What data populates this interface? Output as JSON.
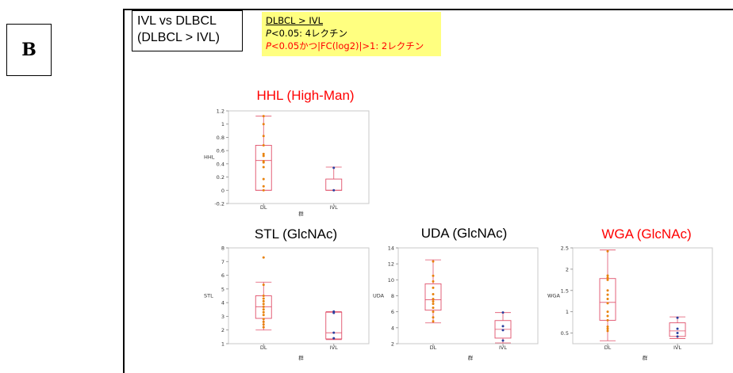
{
  "panel_label": "B",
  "comparison": {
    "line1": "IVL vs DLBCL",
    "line2": "(DLBCL > IVL)"
  },
  "note": {
    "heading": "DLBCL > IVL",
    "line1_p": "P",
    "line1_rest": "<0.05: 4レクチン",
    "line2_p": "P",
    "line2_rest": "<0.05かつ|FC(log2)|>1: 2レクチン"
  },
  "colors": {
    "significant": "#ff0000",
    "normal": "#000000",
    "dl_point": "#e8820c",
    "ivl_point": "#2a3f9e",
    "box": "#e0506a"
  },
  "chart_data": [
    {
      "type": "box",
      "title": "HHL (High-Man)",
      "title_color": "#ff0000",
      "ylabel": "HHL",
      "xlabel": "群",
      "categories": [
        "DL",
        "IVL"
      ],
      "ylim": [
        -0.2,
        1.2
      ],
      "yticks": [
        -0.2,
        0,
        0.2,
        0.4,
        0.6,
        0.8,
        1,
        1.2
      ],
      "ytick_labels": [
        "-0.2",
        "0",
        "0.2",
        "0.4",
        "0.6",
        "0.8",
        "1",
        "1.2"
      ],
      "groups": [
        {
          "name": "DL",
          "min": 0,
          "q1": 0,
          "median": 0.45,
          "q3": 0.68,
          "max": 1.12,
          "points": [
            1.12,
            1.0,
            0.82,
            0.68,
            0.55,
            0.52,
            0.44,
            0.42,
            0.35,
            0.17,
            0.06,
            0.0
          ]
        },
        {
          "name": "IVL",
          "min": 0,
          "q1": 0,
          "median": 0,
          "q3": 0.17,
          "max": 0.35,
          "points": [
            0.34,
            0.0
          ]
        }
      ]
    },
    {
      "type": "box",
      "title": "STL (GlcNAc)",
      "title_color": "#000000",
      "ylabel": "STL",
      "xlabel": "群",
      "categories": [
        "DL",
        "IVL"
      ],
      "ylim": [
        1,
        8
      ],
      "yticks": [
        1,
        2,
        3,
        4,
        5,
        6,
        7,
        8
      ],
      "ytick_labels": [
        "1",
        "2",
        "3",
        "4",
        "5",
        "6",
        "7",
        "8"
      ],
      "groups": [
        {
          "name": "DL",
          "min": 2.0,
          "q1": 2.85,
          "median": 3.7,
          "q3": 4.5,
          "max": 5.5,
          "points": [
            7.3,
            5.3,
            4.5,
            4.3,
            4.1,
            3.9,
            3.7,
            3.5,
            3.3,
            3.1,
            2.8,
            2.6,
            2.4,
            2.2
          ]
        },
        {
          "name": "IVL",
          "min": 1.3,
          "q1": 1.35,
          "median": 1.8,
          "q3": 3.3,
          "max": 3.35,
          "points": [
            3.35,
            3.25,
            1.8,
            1.4
          ]
        }
      ]
    },
    {
      "type": "box",
      "title": "UDA (GlcNAc)",
      "title_color": "#000000",
      "ylabel": "UDA",
      "xlabel": "群",
      "categories": [
        "DL",
        "IVL"
      ],
      "ylim": [
        2,
        14
      ],
      "yticks": [
        2,
        4,
        6,
        8,
        10,
        12,
        14
      ],
      "ytick_labels": [
        "2",
        "4",
        "6",
        "8",
        "10",
        "12",
        "14"
      ],
      "groups": [
        {
          "name": "DL",
          "min": 4.6,
          "q1": 6.2,
          "median": 7.5,
          "q3": 9.5,
          "max": 12.5,
          "points": [
            12.3,
            10.5,
            9.8,
            9.0,
            8.2,
            7.6,
            7.3,
            7.0,
            6.5,
            6.0,
            5.3,
            4.8
          ]
        },
        {
          "name": "IVL",
          "min": 2.1,
          "q1": 2.7,
          "median": 3.8,
          "q3": 4.9,
          "max": 5.9,
          "points": [
            5.9,
            4.2,
            3.7,
            2.4
          ]
        }
      ]
    },
    {
      "type": "box",
      "title": "WGA (GlcNAc)",
      "title_color": "#ff0000",
      "ylabel": "WGA",
      "xlabel": "群",
      "categories": [
        "DL",
        "IVL"
      ],
      "ylim": [
        0.25,
        2.5
      ],
      "yticks": [
        0.5,
        1,
        1.5,
        2,
        2.5
      ],
      "ytick_labels": [
        "0.5",
        "1",
        "1.5",
        "2",
        "2.5"
      ],
      "groups": [
        {
          "name": "DL",
          "min": 0.32,
          "q1": 0.8,
          "median": 1.22,
          "q3": 1.78,
          "max": 2.45,
          "points": [
            2.42,
            1.85,
            1.8,
            1.75,
            1.5,
            1.4,
            1.3,
            1.2,
            1.0,
            0.9,
            0.8,
            0.65,
            0.6,
            0.55
          ]
        },
        {
          "name": "IVL",
          "min": 0.37,
          "q1": 0.42,
          "median": 0.55,
          "q3": 0.74,
          "max": 0.88,
          "points": [
            0.86,
            0.6,
            0.5,
            0.42
          ]
        }
      ]
    }
  ]
}
